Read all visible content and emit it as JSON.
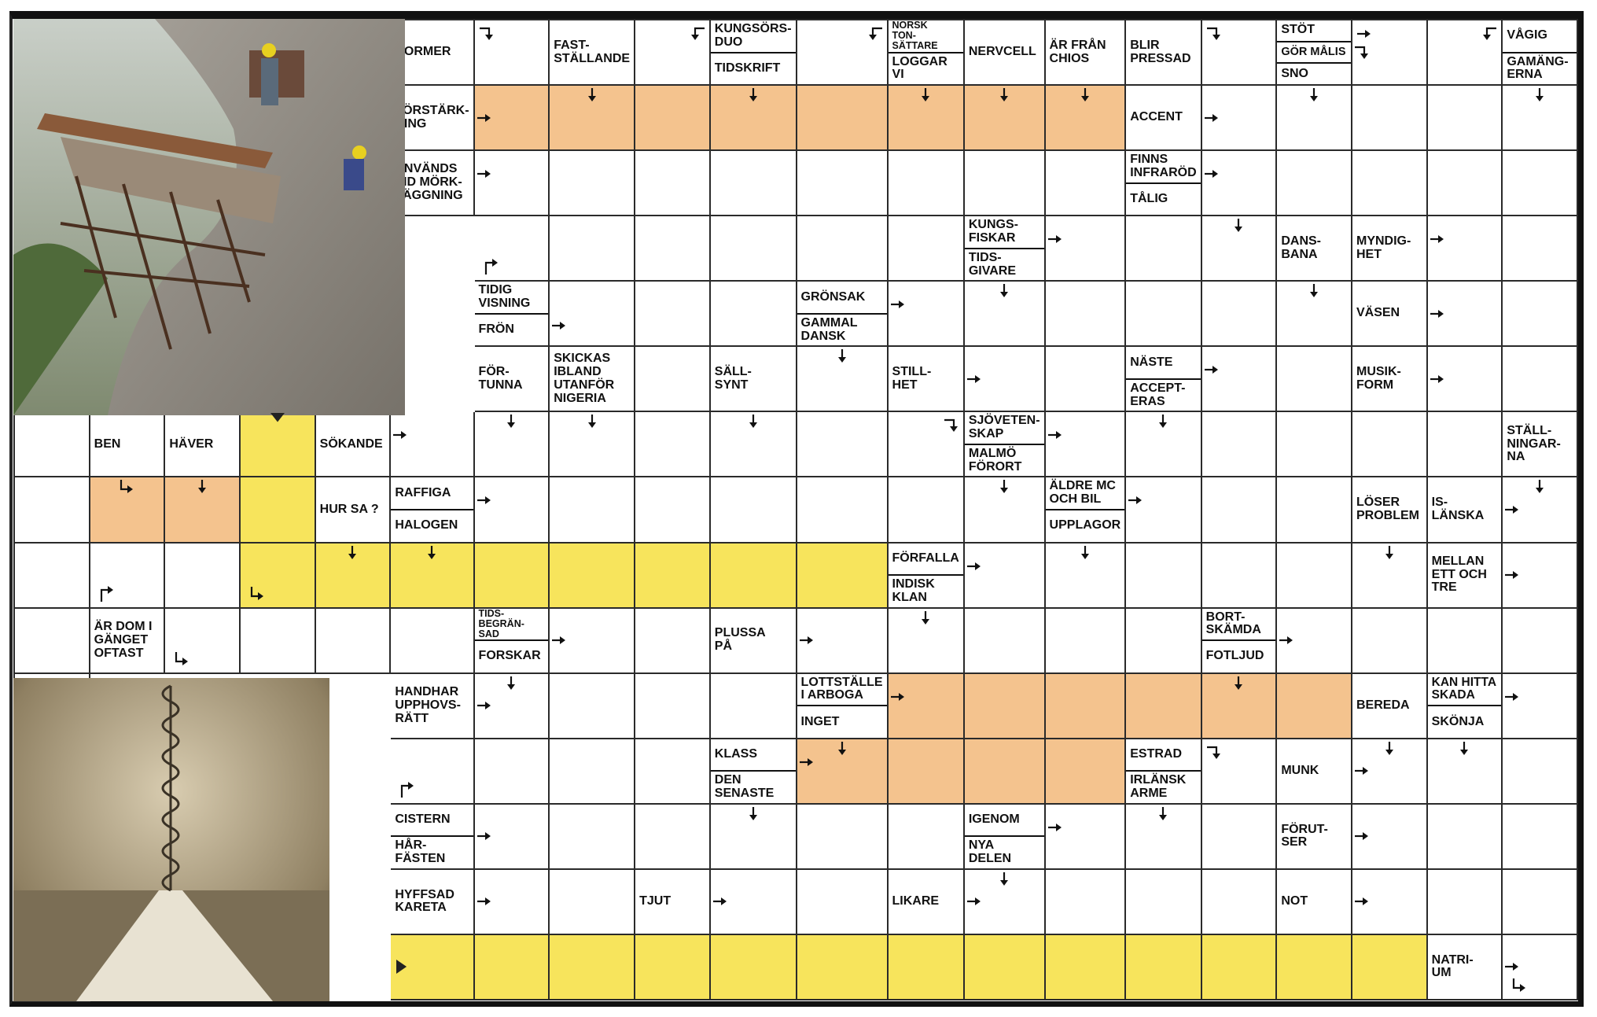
{
  "colors": {
    "highlight_orange": "#f4c38e",
    "highlight_yellow": "#f7e45c",
    "grid_line": "#2a2a2a"
  },
  "images": [
    {
      "name": "cliff-construction-photo",
      "depicts": "workers on scaffolding at cliff edge"
    },
    {
      "name": "spiral-staircase-photo",
      "depicts": "sepia spiral staircase into the sky"
    }
  ],
  "grid": {
    "rows": [
      [
        "I",
        "I",
        "I",
        "I",
        "I",
        {
          "clue": [
            "NORMER"
          ]
        },
        {
          "arrows": [
            {
              "k": "bent-right-down",
              "at": "top-left"
            }
          ]
        },
        {
          "clue": [
            "FAST-\nSTÄLLANDE"
          ]
        },
        {
          "arrows": [
            {
              "k": "bent-left-down",
              "at": "top-right"
            }
          ]
        },
        {
          "clue": [
            "KUNGSÖRS-\nDUO",
            "TIDSKRIFT"
          ]
        },
        {
          "arrows": [
            {
              "k": "bent-left-down",
              "at": "top-right"
            }
          ]
        },
        {
          "clue": [
            "NORSK\nTON-\nSÄTTARE",
            "LOGGAR VI"
          ]
        },
        {
          "clue": [
            "NERVCELL"
          ]
        },
        {
          "clue": [
            "ÄR FRÅN\nCHIOS"
          ]
        },
        {
          "clue": [
            "BLIR\nPRESSAD"
          ]
        },
        {
          "arrows": [
            {
              "k": "bent-right-down",
              "at": "top-left"
            }
          ]
        },
        {
          "clue": [
            "STÖT",
            "GÖR MÅLIS",
            "SNO"
          ]
        },
        {
          "arrows": [
            {
              "k": "right",
              "at": "top-left"
            },
            {
              "k": "bent-right-down",
              "at": "left"
            }
          ]
        },
        {
          "arrows": [
            {
              "k": "bent-left-down",
              "at": "top-right"
            }
          ]
        },
        {
          "clue": [
            "VÅGIG",
            "GAMÄNG-\nERNA"
          ]
        }
      ],
      [
        "I",
        "I",
        "I",
        "I",
        "I",
        {
          "clue": [
            "FÖRSTÄRK-\nNING"
          ]
        },
        {
          "f": "O",
          "arrows": [
            {
              "k": "right",
              "at": "left"
            }
          ]
        },
        {
          "f": "O",
          "arrows": [
            {
              "k": "down",
              "at": "top"
            }
          ]
        },
        "O",
        {
          "f": "O",
          "arrows": [
            {
              "k": "down",
              "at": "top"
            }
          ]
        },
        "O",
        {
          "f": "O",
          "arrows": [
            {
              "k": "down",
              "at": "top"
            }
          ]
        },
        {
          "f": "O",
          "arrows": [
            {
              "k": "down",
              "at": "top"
            }
          ]
        },
        {
          "f": "O",
          "arrows": [
            {
              "k": "down",
              "at": "top"
            }
          ]
        },
        {
          "clue": [
            "ACCENT"
          ]
        },
        {
          "arrows": [
            {
              "k": "right",
              "at": "left"
            }
          ]
        },
        {
          "arrows": [
            {
              "k": "down",
              "at": "top"
            }
          ]
        },
        "",
        "",
        {
          "arrows": [
            {
              "k": "down",
              "at": "top"
            }
          ]
        }
      ],
      [
        "I",
        "I",
        "I",
        "I",
        "I",
        {
          "clue": [
            "ANVÄNDS\nVID MÖRK-\nLÄGGNING"
          ]
        },
        {
          "arrows": [
            {
              "k": "right",
              "at": "left-upper"
            }
          ]
        },
        "",
        "",
        "",
        "",
        "",
        "",
        "",
        {
          "clue": [
            "FINNS\nINFRARÖD",
            "TÅLIG"
          ]
        },
        {
          "arrows": [
            {
              "k": "right",
              "at": "left-upper"
            }
          ]
        },
        "",
        "",
        "",
        "",
        ""
      ],
      [
        "I",
        "I",
        "I",
        "I",
        "I",
        {
          "arrows": [
            {
              "k": "bent-up-right",
              "at": "bottom-left"
            }
          ]
        },
        "",
        "",
        "",
        "",
        "",
        {
          "clue": [
            "KUNGS-\nFISKAR",
            "TIDS-\nGIVARE"
          ]
        },
        {
          "arrows": [
            {
              "k": "right",
              "at": "left-upper"
            }
          ]
        },
        "",
        {
          "arrows": [
            {
              "k": "down",
              "at": "top"
            }
          ]
        },
        {
          "clue": [
            "DANS-\nBANA"
          ]
        },
        {
          "clue": [
            "MYNDIG-\nHET"
          ]
        },
        {
          "arrows": [
            {
              "k": "right",
              "at": "left-upper"
            }
          ]
        },
        "",
        ""
      ],
      [
        "I",
        "I",
        "I",
        "I",
        "I",
        {
          "clue": [
            "TIDIG\nVISNING",
            "FRÖN"
          ]
        },
        {
          "arrows": [
            {
              "k": "right",
              "at": "left-lower"
            }
          ]
        },
        "",
        "",
        {
          "clue": [
            "GRÖNSAK",
            "GAMMAL\nDANSK"
          ]
        },
        {
          "arrows": [
            {
              "k": "right",
              "at": "left-upper"
            }
          ]
        },
        {
          "arrows": [
            {
              "k": "down",
              "at": "top"
            }
          ]
        },
        "",
        "",
        "",
        {
          "arrows": [
            {
              "k": "down",
              "at": "top"
            }
          ]
        },
        {
          "clue": [
            "VÄSEN"
          ]
        },
        {
          "arrows": [
            {
              "k": "right",
              "at": "left"
            }
          ]
        },
        "",
        ""
      ],
      [
        "I",
        "I",
        "I",
        "I",
        "I",
        {
          "clue": [
            "FÖR-\nTUNNA"
          ]
        },
        {
          "clue": [
            "SKICKAS\nIBLAND\nUTANFÖR\nNIGERIA"
          ]
        },
        "",
        {
          "clue": [
            "SÄLL-\nSYNT"
          ]
        },
        {
          "arrows": [
            {
              "k": "down",
              "at": "top"
            }
          ]
        },
        {
          "clue": [
            "STILL-\nHET"
          ]
        },
        {
          "arrows": [
            {
              "k": "right",
              "at": "left"
            }
          ]
        },
        "",
        {
          "clue": [
            "NÄSTE",
            "ACCEPT-\nERAS"
          ]
        },
        {
          "arrows": [
            {
              "k": "right",
              "at": "left-upper"
            }
          ]
        },
        "",
        {
          "clue": [
            "MUSIK-\nFORM"
          ]
        },
        {
          "arrows": [
            {
              "k": "right",
              "at": "left"
            }
          ]
        },
        "",
        ""
      ],
      [
        {
          "clue": [
            "BEN"
          ]
        },
        {
          "clue": [
            "HÄVER"
          ]
        },
        {
          "f": "Y",
          "arrows": [
            {
              "k": "marker-down",
              "at": "top"
            }
          ]
        },
        {
          "clue": [
            "SÖKANDE"
          ]
        },
        {
          "arrows": [
            {
              "k": "right",
              "at": "left-upper"
            }
          ]
        },
        {
          "arrows": [
            {
              "k": "down",
              "at": "top"
            }
          ]
        },
        {
          "arrows": [
            {
              "k": "down",
              "at": "top"
            }
          ]
        },
        "",
        {
          "arrows": [
            {
              "k": "down",
              "at": "top"
            }
          ]
        },
        "",
        {
          "arrows": [
            {
              "k": "bent-right-down",
              "at": "top-right"
            }
          ]
        },
        {
          "clue": [
            "SJÖVETEN-\nSKAP",
            "MALMÖ\nFÖRORT"
          ]
        },
        {
          "arrows": [
            {
              "k": "right",
              "at": "left-upper"
            }
          ]
        },
        {
          "arrows": [
            {
              "k": "down",
              "at": "top"
            }
          ]
        },
        "",
        "",
        "",
        "",
        {
          "clue": [
            "STÄLL-\nNINGAR-\nNA"
          ]
        },
        ""
      ],
      [
        {
          "f": "O",
          "arrows": [
            {
              "k": "bent-down-right",
              "at": "top"
            }
          ]
        },
        {
          "f": "O",
          "arrows": [
            {
              "k": "down",
              "at": "top"
            }
          ]
        },
        "Y",
        {
          "clue": [
            "HUR SA ?"
          ]
        },
        {
          "clue": [
            "RAFFIGA",
            "HALOGEN"
          ]
        },
        {
          "arrows": [
            {
              "k": "right",
              "at": "left-upper"
            }
          ]
        },
        "",
        "",
        "",
        "",
        "",
        {
          "arrows": [
            {
              "k": "down",
              "at": "top"
            }
          ]
        },
        {
          "clue": [
            "ÄLDRE MC\nOCH BIL",
            "UPPLAGOR"
          ]
        },
        {
          "arrows": [
            {
              "k": "right",
              "at": "left-upper"
            }
          ]
        },
        "",
        "",
        {
          "clue": [
            "LÖSER\nPROBLEM"
          ]
        },
        {
          "clue": [
            "IS-\nLÄNSKA"
          ]
        },
        {
          "arrows": [
            {
              "k": "right",
              "at": "left"
            },
            {
              "k": "down",
              "at": "top"
            }
          ]
        },
        ""
      ],
      [
        {
          "arrows": [
            {
              "k": "bent-up-right",
              "at": "bottom-left"
            }
          ]
        },
        "",
        {
          "f": "Y",
          "arrows": [
            {
              "k": "bent-down-right",
              "at": "bottom-left"
            }
          ]
        },
        {
          "f": "Y",
          "arrows": [
            {
              "k": "down",
              "at": "top"
            }
          ]
        },
        {
          "f": "Y",
          "arrows": [
            {
              "k": "down",
              "at": "top"
            }
          ]
        },
        "Y",
        "Y",
        "Y",
        "Y",
        "Y",
        {
          "clue": [
            "FÖRFALLA",
            "INDISK\nKLAN"
          ]
        },
        {
          "arrows": [
            {
              "k": "right",
              "at": "left-upper"
            }
          ]
        },
        {
          "arrows": [
            {
              "k": "down",
              "at": "top"
            }
          ]
        },
        "",
        "",
        "",
        {
          "arrows": [
            {
              "k": "down",
              "at": "top"
            }
          ]
        },
        {
          "clue": [
            "MELLAN\nETT OCH\nTRE"
          ]
        },
        {
          "arrows": [
            {
              "k": "right",
              "at": "left"
            }
          ]
        },
        ""
      ],
      [
        {
          "clue": [
            "ÄR DOM I\nGÄNGET\nOFTAST"
          ]
        },
        {
          "arrows": [
            {
              "k": "bent-down-right",
              "at": "bottom-left"
            }
          ]
        },
        "",
        "",
        "",
        {
          "clue": [
            "TIDS-\nBEGRÄN-\nSAD",
            "FORSKAR"
          ]
        },
        {
          "arrows": [
            {
              "k": "right",
              "at": "left"
            }
          ]
        },
        "",
        {
          "clue": [
            "PLUSSA\nPÅ"
          ]
        },
        {
          "arrows": [
            {
              "k": "right",
              "at": "left"
            }
          ]
        },
        {
          "arrows": [
            {
              "k": "down",
              "at": "top"
            }
          ]
        },
        "",
        "",
        "",
        {
          "clue": [
            "BORT-\nSKÄMDA",
            "FOTLJUD"
          ]
        },
        {
          "arrows": [
            {
              "k": "right",
              "at": "left"
            }
          ]
        },
        "",
        "",
        "",
        ""
      ],
      [
        "I",
        "I",
        "I",
        "I",
        {
          "clue": [
            "HANDHAR\nUPPHOVS-\nRÄTT"
          ]
        },
        {
          "arrows": [
            {
              "k": "right",
              "at": "left"
            },
            {
              "k": "down",
              "at": "top"
            }
          ]
        },
        "",
        "",
        "",
        {
          "clue": [
            "LOTTSTÄLLE\nI ARBOGA",
            "INGET"
          ]
        },
        {
          "f": "O",
          "arrows": [
            {
              "k": "right",
              "at": "left-upper"
            }
          ]
        },
        "O",
        "O",
        "O",
        {
          "f": "O",
          "arrows": [
            {
              "k": "down",
              "at": "top"
            }
          ]
        },
        "O",
        {
          "clue": [
            "BEREDA"
          ]
        },
        {
          "clue": [
            "KAN HITTA\nSKADA",
            "SKÖNJA"
          ]
        },
        {
          "arrows": [
            {
              "k": "right",
              "at": "left-upper"
            }
          ]
        },
        ""
      ],
      [
        "I",
        "I",
        "I",
        "I",
        {
          "arrows": [
            {
              "k": "bent-up-right",
              "at": "bottom-left"
            }
          ]
        },
        "",
        "",
        "",
        {
          "clue": [
            "KLASS",
            "DEN\nSENASTE"
          ]
        },
        {
          "f": "O",
          "arrows": [
            {
              "k": "right",
              "at": "left-upper"
            },
            {
              "k": "down",
              "at": "top"
            }
          ]
        },
        "O",
        "O",
        "O",
        {
          "clue": [
            "ESTRAD",
            "IRLÄNSK\nARME"
          ]
        },
        {
          "arrows": [
            {
              "k": "bent-right-down",
              "at": "top-left"
            }
          ]
        },
        {
          "clue": [
            "MUNK"
          ]
        },
        {
          "arrows": [
            {
              "k": "right",
              "at": "left"
            },
            {
              "k": "down",
              "at": "top"
            }
          ]
        },
        {
          "arrows": [
            {
              "k": "down",
              "at": "top"
            }
          ]
        },
        "",
        ""
      ],
      [
        "I",
        "I",
        "I",
        "I",
        {
          "clue": [
            "CISTERN",
            "HÅR-\nFÄSTEN"
          ]
        },
        {
          "arrows": [
            {
              "k": "right",
              "at": "left"
            }
          ]
        },
        "",
        "",
        {
          "arrows": [
            {
              "k": "down",
              "at": "top"
            }
          ]
        },
        "",
        "",
        {
          "clue": [
            "IGENOM",
            "NYA\nDELEN"
          ]
        },
        {
          "arrows": [
            {
              "k": "right",
              "at": "left-upper"
            }
          ]
        },
        {
          "arrows": [
            {
              "k": "down",
              "at": "top"
            }
          ]
        },
        "",
        {
          "clue": [
            "FÖRUT-\nSER"
          ]
        },
        {
          "arrows": [
            {
              "k": "right",
              "at": "left"
            }
          ]
        },
        "",
        "",
        ""
      ],
      [
        "I",
        "I",
        "I",
        "I",
        {
          "clue": [
            "HYFFSAD\nKARETA"
          ]
        },
        {
          "arrows": [
            {
              "k": "right",
              "at": "left"
            }
          ]
        },
        "",
        {
          "clue": [
            "TJUT"
          ]
        },
        {
          "arrows": [
            {
              "k": "right",
              "at": "left"
            }
          ]
        },
        "",
        {
          "clue": [
            "LIKARE"
          ]
        },
        {
          "arrows": [
            {
              "k": "right",
              "at": "left"
            },
            {
              "k": "down",
              "at": "top"
            }
          ]
        },
        "",
        "",
        "",
        {
          "clue": [
            "NOT"
          ]
        },
        {
          "arrows": [
            {
              "k": "right",
              "at": "left"
            }
          ]
        },
        "",
        "",
        ""
      ],
      [
        "I",
        "I",
        "I",
        "I",
        {
          "f": "Y",
          "arrows": [
            {
              "k": "marker-right",
              "at": "left"
            }
          ]
        },
        "Y",
        "Y",
        "Y",
        "Y",
        "Y",
        "Y",
        "Y",
        "Y",
        "Y",
        "Y",
        "Y",
        "Y",
        {
          "clue": [
            "NATRI-\nUM"
          ]
        },
        {
          "arrows": [
            {
              "k": "right",
              "at": "left"
            },
            {
              "k": "bent-down-right",
              "at": "bottom-left"
            }
          ]
        },
        ""
      ]
    ]
  }
}
